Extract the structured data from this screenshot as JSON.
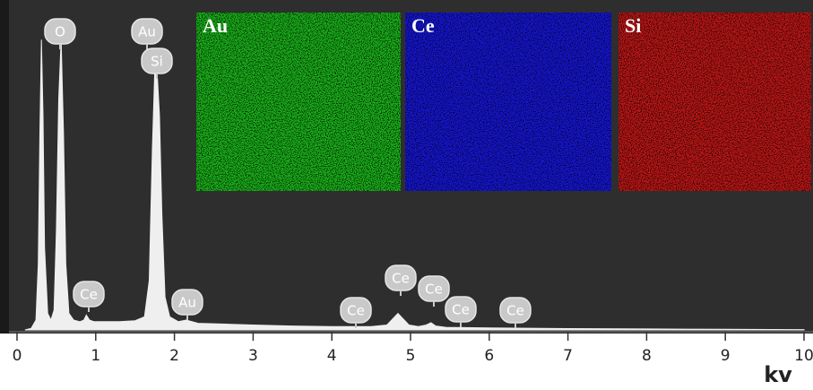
{
  "chart_data": {
    "type": "area",
    "x_label": "kv",
    "x": [
      0.1,
      0.18,
      0.24,
      0.27,
      0.29,
      0.31,
      0.33,
      0.35,
      0.39,
      0.43,
      0.47,
      0.5,
      0.53,
      0.56,
      0.59,
      0.62,
      0.66,
      0.72,
      0.8,
      0.85,
      0.88,
      0.92,
      0.98,
      1.1,
      1.3,
      1.5,
      1.62,
      1.68,
      1.72,
      1.75,
      1.78,
      1.81,
      1.84,
      1.88,
      1.94,
      2.05,
      2.15,
      2.3,
      2.6,
      3.0,
      3.5,
      4.0,
      4.5,
      4.7,
      4.78,
      4.84,
      4.9,
      4.98,
      5.1,
      5.2,
      5.26,
      5.32,
      5.45,
      6.0,
      7.0,
      8.0,
      9.0,
      10.0
    ],
    "values": [
      0,
      0.5,
      3,
      20,
      60,
      88,
      65,
      25,
      5,
      3,
      6,
      30,
      70,
      88,
      60,
      20,
      5,
      3,
      2.5,
      3,
      4.5,
      3,
      2.5,
      2.5,
      2.5,
      2.8,
      4,
      15,
      55,
      78,
      78,
      65,
      35,
      10,
      4,
      2.5,
      3,
      2,
      1.8,
      1.5,
      1.2,
      1,
      1,
      1.5,
      3.5,
      5,
      3.5,
      1.5,
      1,
      1.5,
      2.2,
      1.2,
      0.8,
      0.6,
      0.4,
      0.3,
      0.2,
      0.1
    ],
    "color": "#efefef",
    "xlim": [
      0,
      10
    ],
    "xticks": [
      0,
      1,
      2,
      3,
      4,
      5,
      6,
      7,
      8,
      9,
      10
    ],
    "ylim": [
      0,
      100
    ],
    "annotations": [
      "O",
      "Au",
      "Si",
      "Ce",
      "Au",
      "Ce",
      "Ce",
      "Ce",
      "Ce",
      "Ce"
    ],
    "maps": [
      {
        "label": "Au",
        "color": "#1fd21f"
      },
      {
        "label": "Ce",
        "color": "#1a1aff"
      },
      {
        "label": "Si",
        "color": "#e01a1a"
      }
    ]
  }
}
